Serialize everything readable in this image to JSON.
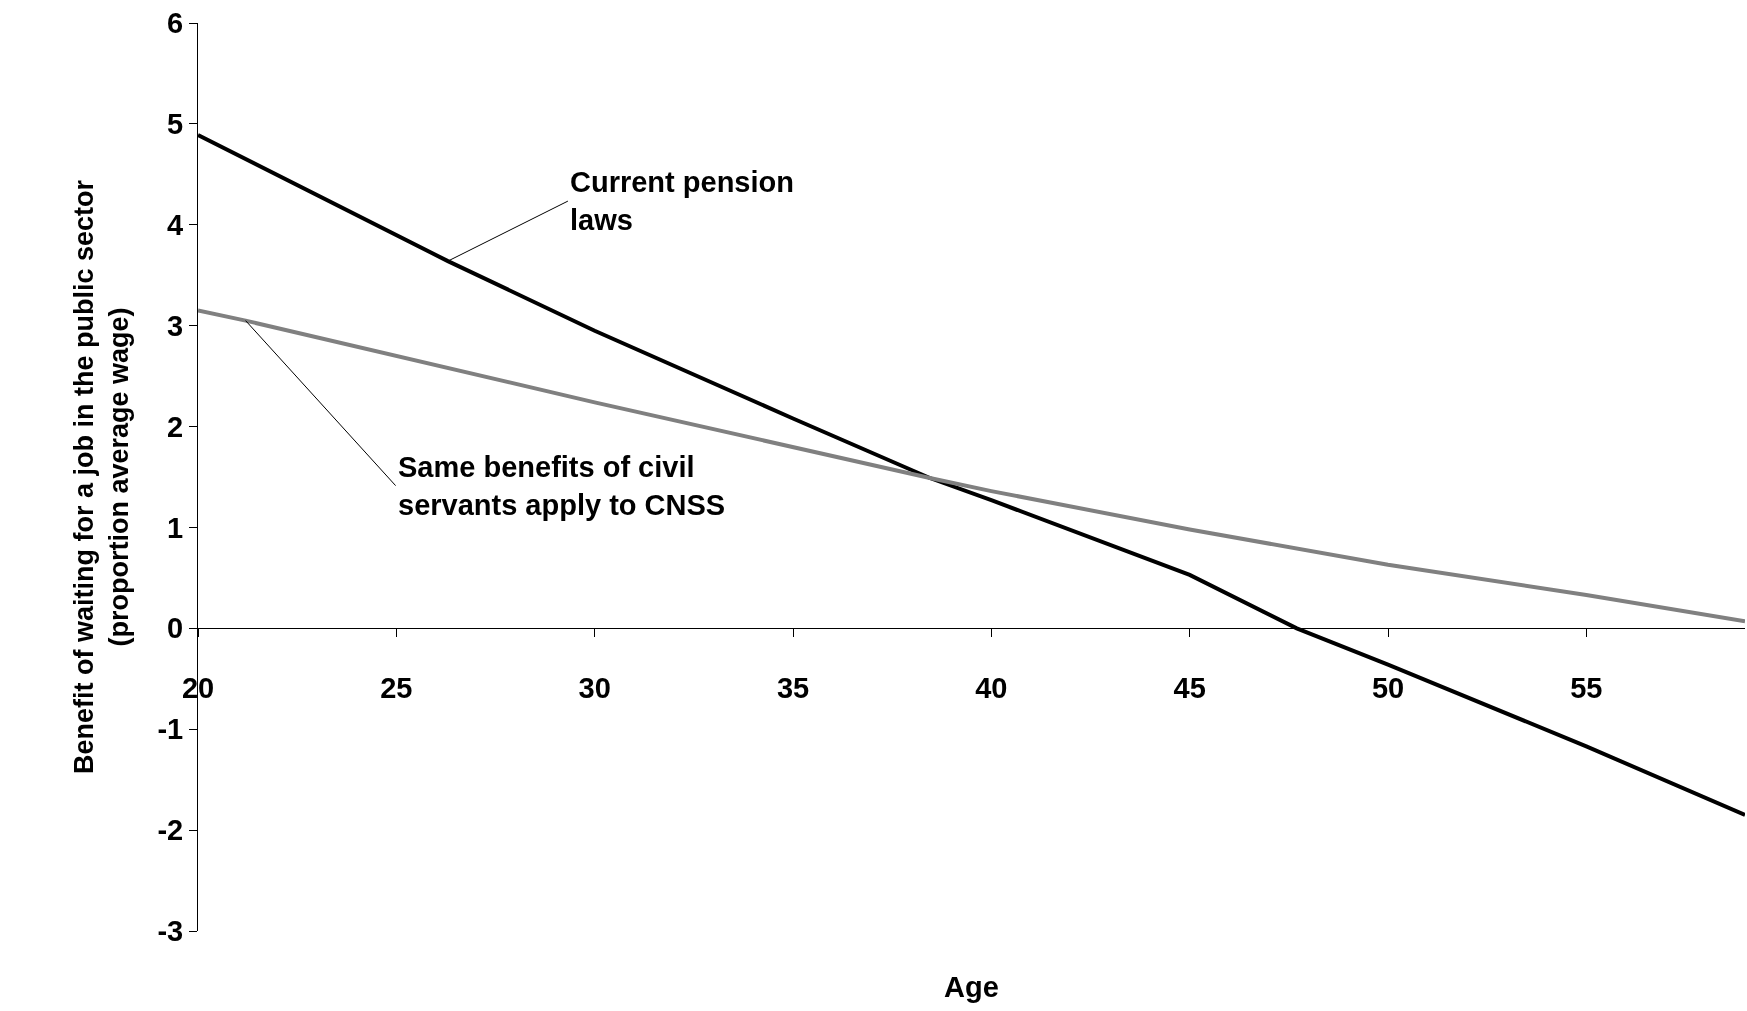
{
  "chart_data": {
    "type": "line",
    "xlabel": "Age",
    "ylabel": "Benefit of waiting for a job in the public sector (proportion average wage)",
    "xlim": [
      20,
      59
    ],
    "xticks": [
      20,
      25,
      30,
      35,
      40,
      45,
      50,
      55
    ],
    "ylim": [
      -3,
      6
    ],
    "yticks": [
      -3,
      -2,
      -1,
      0,
      1,
      2,
      3,
      4,
      5,
      6
    ],
    "grid": false,
    "legend": false,
    "marker": "none",
    "line_style": "solid",
    "series": [
      {
        "name": "Current pension laws",
        "color": "#000000",
        "x": [
          20,
          26.3,
          30,
          35,
          38.45,
          40,
          45,
          47.7,
          50,
          55,
          59
        ],
        "values": [
          4.89,
          3.64,
          2.95,
          2.08,
          1.49,
          1.27,
          0.53,
          0,
          -0.36,
          -1.17,
          -1.85
        ]
      },
      {
        "name": "Same benefits of civil servants apply to CNSS",
        "color": "#808080",
        "x": [
          20,
          21.2,
          30,
          38.45,
          40,
          45,
          50,
          55,
          59
        ],
        "values": [
          3.15,
          3.05,
          2.24,
          1.49,
          1.36,
          0.98,
          0.63,
          0.33,
          0.07
        ]
      }
    ]
  }
}
